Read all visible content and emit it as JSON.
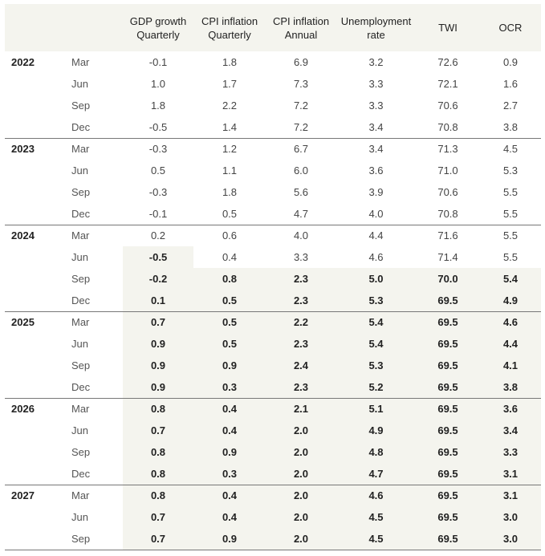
{
  "headers": [
    {
      "line1": "GDP growth",
      "line2": "Quarterly"
    },
    {
      "line1": "CPI inflation",
      "line2": "Quarterly"
    },
    {
      "line1": "CPI inflation",
      "line2": "Annual"
    },
    {
      "line1": "Unemployment",
      "line2": "rate"
    },
    {
      "line1": "TWI",
      "line2": ""
    },
    {
      "line1": "OCR",
      "line2": ""
    }
  ],
  "rows": [
    {
      "year": "2022",
      "q": "Mar",
      "v": [
        "-0.1",
        "1.8",
        "6.9",
        "3.2",
        "72.6",
        "0.9"
      ],
      "fc": 0
    },
    {
      "year": "",
      "q": "Jun",
      "v": [
        "1.0",
        "1.7",
        "7.3",
        "3.3",
        "72.1",
        "1.6"
      ],
      "fc": 0
    },
    {
      "year": "",
      "q": "Sep",
      "v": [
        "1.8",
        "2.2",
        "7.2",
        "3.3",
        "70.6",
        "2.7"
      ],
      "fc": 0
    },
    {
      "year": "",
      "q": "Dec",
      "v": [
        "-0.5",
        "1.4",
        "7.2",
        "3.4",
        "70.8",
        "3.8"
      ],
      "fc": 0
    },
    {
      "year": "2023",
      "q": "Mar",
      "v": [
        "-0.3",
        "1.2",
        "6.7",
        "3.4",
        "71.3",
        "4.5"
      ],
      "fc": 0
    },
    {
      "year": "",
      "q": "Jun",
      "v": [
        "0.5",
        "1.1",
        "6.0",
        "3.6",
        "71.0",
        "5.3"
      ],
      "fc": 0
    },
    {
      "year": "",
      "q": "Sep",
      "v": [
        "-0.3",
        "1.8",
        "5.6",
        "3.9",
        "70.6",
        "5.5"
      ],
      "fc": 0
    },
    {
      "year": "",
      "q": "Dec",
      "v": [
        "-0.1",
        "0.5",
        "4.7",
        "4.0",
        "70.8",
        "5.5"
      ],
      "fc": 0
    },
    {
      "year": "2024",
      "q": "Mar",
      "v": [
        "0.2",
        "0.6",
        "4.0",
        "4.4",
        "71.6",
        "5.5"
      ],
      "fc": 0
    },
    {
      "year": "",
      "q": "Jun",
      "v": [
        "-0.5",
        "0.4",
        "3.3",
        "4.6",
        "71.4",
        "5.5"
      ],
      "fc": 1
    },
    {
      "year": "",
      "q": "Sep",
      "v": [
        "-0.2",
        "0.8",
        "2.3",
        "5.0",
        "70.0",
        "5.4"
      ],
      "fc": 6
    },
    {
      "year": "",
      "q": "Dec",
      "v": [
        "0.1",
        "0.5",
        "2.3",
        "5.3",
        "69.5",
        "4.9"
      ],
      "fc": 6
    },
    {
      "year": "2025",
      "q": "Mar",
      "v": [
        "0.7",
        "0.5",
        "2.2",
        "5.4",
        "69.5",
        "4.6"
      ],
      "fc": 6
    },
    {
      "year": "",
      "q": "Jun",
      "v": [
        "0.9",
        "0.5",
        "2.3",
        "5.4",
        "69.5",
        "4.4"
      ],
      "fc": 6
    },
    {
      "year": "",
      "q": "Sep",
      "v": [
        "0.9",
        "0.9",
        "2.4",
        "5.3",
        "69.5",
        "4.1"
      ],
      "fc": 6
    },
    {
      "year": "",
      "q": "Dec",
      "v": [
        "0.9",
        "0.3",
        "2.3",
        "5.2",
        "69.5",
        "3.8"
      ],
      "fc": 6
    },
    {
      "year": "2026",
      "q": "Mar",
      "v": [
        "0.8",
        "0.4",
        "2.1",
        "5.1",
        "69.5",
        "3.6"
      ],
      "fc": 6
    },
    {
      "year": "",
      "q": "Jun",
      "v": [
        "0.7",
        "0.4",
        "2.0",
        "4.9",
        "69.5",
        "3.4"
      ],
      "fc": 6
    },
    {
      "year": "",
      "q": "Sep",
      "v": [
        "0.8",
        "0.9",
        "2.0",
        "4.8",
        "69.5",
        "3.3"
      ],
      "fc": 6
    },
    {
      "year": "",
      "q": "Dec",
      "v": [
        "0.8",
        "0.3",
        "2.0",
        "4.7",
        "69.5",
        "3.1"
      ],
      "fc": 6
    },
    {
      "year": "2027",
      "q": "Mar",
      "v": [
        "0.8",
        "0.4",
        "2.0",
        "4.6",
        "69.5",
        "3.1"
      ],
      "fc": 6
    },
    {
      "year": "",
      "q": "Jun",
      "v": [
        "0.7",
        "0.4",
        "2.0",
        "4.5",
        "69.5",
        "3.0"
      ],
      "fc": 6
    },
    {
      "year": "",
      "q": "Sep",
      "v": [
        "0.7",
        "0.9",
        "2.0",
        "4.5",
        "69.5",
        "3.0"
      ],
      "fc": 6
    }
  ],
  "colors": {
    "header_bg": "#f4f4ee",
    "forecast_bg": "#f4f4ee",
    "rule": "#777777"
  }
}
